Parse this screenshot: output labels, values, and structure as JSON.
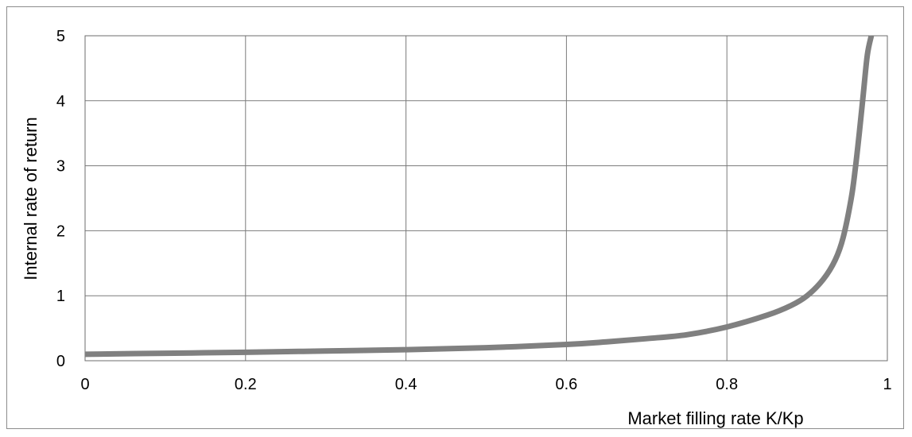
{
  "chart_data": {
    "type": "line",
    "title": "",
    "xlabel": "Market filling rate K/Kp",
    "ylabel": "Internal rate of return",
    "xlim": [
      0,
      1
    ],
    "ylim": [
      0,
      5
    ],
    "x_ticks": [
      0,
      0.2,
      0.4,
      0.6,
      0.8,
      1
    ],
    "x_tick_labels": [
      "0",
      "0.2",
      "0.4",
      "0.6",
      "0.8",
      "1"
    ],
    "y_ticks": [
      0,
      1,
      2,
      3,
      4,
      5
    ],
    "y_tick_labels": [
      "0",
      "1",
      "2",
      "3",
      "4",
      "5"
    ],
    "grid": true,
    "legend": "none",
    "series": [
      {
        "color": "#808080",
        "x": [
          0,
          0.1,
          0.2,
          0.3,
          0.4,
          0.5,
          0.6,
          0.65,
          0.7,
          0.75,
          0.8,
          0.85,
          0.88,
          0.9,
          0.92,
          0.935,
          0.945,
          0.955,
          0.96,
          0.965,
          0.97,
          0.975,
          0.98
        ],
        "y": [
          0.1,
          0.115,
          0.13,
          0.15,
          0.17,
          0.2,
          0.25,
          0.29,
          0.34,
          0.4,
          0.52,
          0.7,
          0.85,
          1.0,
          1.25,
          1.55,
          1.9,
          2.5,
          2.95,
          3.5,
          4.1,
          4.7,
          5.0
        ]
      }
    ]
  }
}
